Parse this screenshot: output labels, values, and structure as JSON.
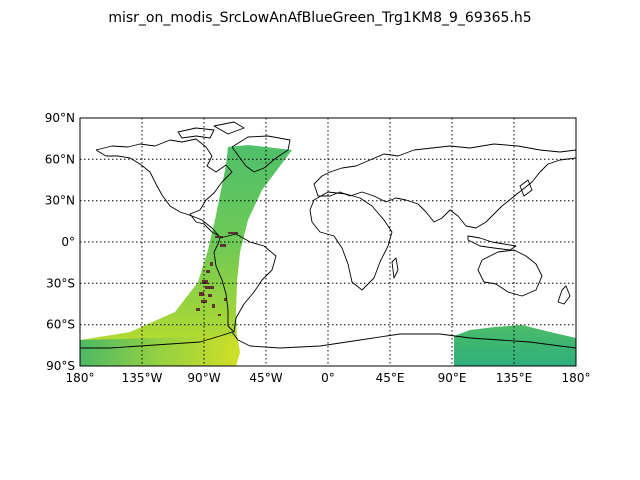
{
  "title": "misr_on_modis_SrcLowAnAfBlueGreen_Trg1KM8_9_69365.h5",
  "map": {
    "projection": "equirectangular",
    "lon_range": [
      -180,
      180
    ],
    "lat_range": [
      -90,
      90
    ],
    "lat_ticks": [
      {
        "value": 90,
        "label": "90°N"
      },
      {
        "value": 60,
        "label": "60°N"
      },
      {
        "value": 30,
        "label": "30°N"
      },
      {
        "value": 0,
        "label": "0°"
      },
      {
        "value": -30,
        "label": "30°S"
      },
      {
        "value": -60,
        "label": "60°S"
      },
      {
        "value": -90,
        "label": "90°S"
      }
    ],
    "lon_ticks": [
      {
        "value": -180,
        "label": "180°"
      },
      {
        "value": -135,
        "label": "135°W"
      },
      {
        "value": -90,
        "label": "90°W"
      },
      {
        "value": -45,
        "label": "45°W"
      },
      {
        "value": 0,
        "label": "0°"
      },
      {
        "value": 45,
        "label": "45°E"
      },
      {
        "value": 90,
        "label": "90°E"
      },
      {
        "value": 135,
        "label": "135°E"
      },
      {
        "value": 180,
        "label": "180°"
      }
    ],
    "grid": "dotted",
    "colors": {
      "swath_green": "#56c46a",
      "swath_yellow": "#c9df2a",
      "swath_teal": "#2fae7c",
      "swath_dark": "#5a1730",
      "coastline": "#000000",
      "grid": "#000000"
    }
  }
}
